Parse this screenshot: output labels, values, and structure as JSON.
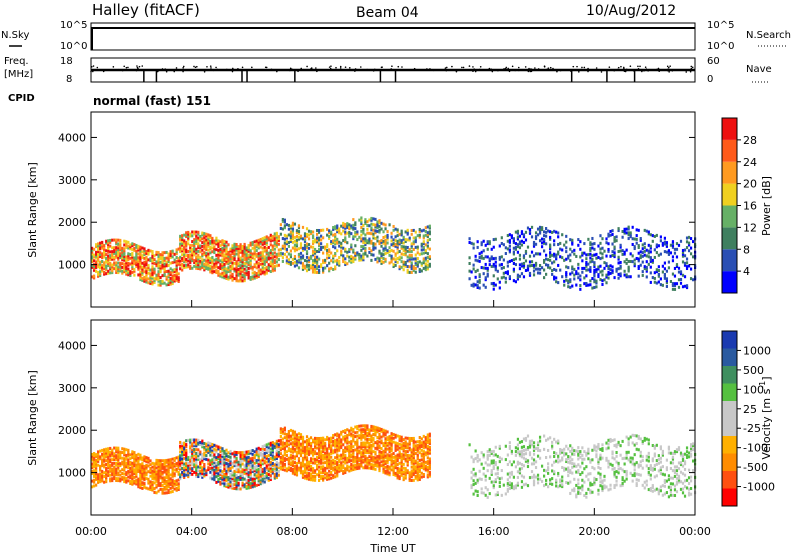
{
  "header": {
    "station": "Halley (fitACF)",
    "beam": "Beam 04",
    "date": "10/Aug/2012"
  },
  "info_panels": {
    "nsky_label": "N.Sky",
    "nsky_ticks": [
      "10^5",
      "10^0"
    ],
    "nsearch_label": "N.Search",
    "nsearch_ticks": [
      "10^5",
      "10^0"
    ],
    "freq_label_1": "Freq.",
    "freq_label_2": "[MHz]",
    "freq_ticks": [
      "18",
      "8"
    ],
    "nave_label": "Nave",
    "nave_ticks": [
      "60",
      "0"
    ],
    "cpid_label": "CPID",
    "cpid_value": "normal (fast) 151"
  },
  "x_axis": {
    "label": "Time UT",
    "ticks": [
      "00:00",
      "04:00",
      "08:00",
      "12:00",
      "16:00",
      "20:00",
      "00:00"
    ]
  },
  "colors": {
    "power_scale": [
      "#0000ff",
      "#2a4fb4",
      "#3f7f5f",
      "#66b066",
      "#f0d020",
      "#ff9a20",
      "#ff5a1a",
      "#ee1010"
    ],
    "velocity_scale": [
      "#ff0000",
      "#ff5010",
      "#ff8c00",
      "#ffb000",
      "#c8c8c8",
      "#c8c8c8",
      "#55c040",
      "#3f8f5f",
      "#2a5aa0",
      "#1a3ab0"
    ]
  },
  "chart_data": [
    {
      "type": "heatmap",
      "title": "Power",
      "xlabel": "Time UT",
      "ylabel": "Slant Range [km]",
      "xlim": [
        "00:00",
        "24:00"
      ],
      "ylim": [
        0,
        4600
      ],
      "y_ticks": [
        "1000",
        "2000",
        "3000",
        "4000"
      ],
      "colorbar": {
        "label": "Power [dB]",
        "ticks": [
          "4",
          "8",
          "12",
          "16",
          "20",
          "24",
          "28"
        ],
        "range": [
          0,
          32
        ]
      },
      "echo_regions": [
        {
          "t_start": 0.0,
          "t_end": 3.5,
          "range_min_km": 700,
          "range_max_km": 1500,
          "level": "high"
        },
        {
          "t_start": 3.5,
          "t_end": 7.5,
          "range_min_km": 800,
          "range_max_km": 1700,
          "level": "high"
        },
        {
          "t_start": 7.5,
          "t_end": 13.5,
          "range_min_km": 1000,
          "range_max_km": 2000,
          "level": "medium"
        },
        {
          "t_start": 15.0,
          "t_end": 24.0,
          "range_min_km": 600,
          "range_max_km": 1800,
          "level": "low"
        }
      ]
    },
    {
      "type": "heatmap",
      "title": "Velocity",
      "xlabel": "Time UT",
      "ylabel": "Slant Range [km]",
      "xlim": [
        "00:00",
        "24:00"
      ],
      "ylim": [
        0,
        4600
      ],
      "y_ticks": [
        "1000",
        "2000",
        "3000",
        "4000"
      ],
      "colorbar": {
        "label": "Velocity [m s^-1]",
        "ticks": [
          "1000",
          "500",
          "100",
          "25",
          "-25",
          "-100",
          "-500",
          "-1000"
        ]
      },
      "echo_regions": [
        {
          "t_start": 0.0,
          "t_end": 3.5,
          "range_min_km": 700,
          "range_max_km": 1500,
          "velocity": "negative"
        },
        {
          "t_start": 3.5,
          "t_end": 7.5,
          "range_min_km": 800,
          "range_max_km": 1700,
          "velocity": "mixed"
        },
        {
          "t_start": 7.5,
          "t_end": 13.5,
          "range_min_km": 1000,
          "range_max_km": 2000,
          "velocity": "negative"
        },
        {
          "t_start": 15.0,
          "t_end": 24.0,
          "range_min_km": 600,
          "range_max_km": 1800,
          "velocity": "near-zero"
        }
      ]
    }
  ]
}
